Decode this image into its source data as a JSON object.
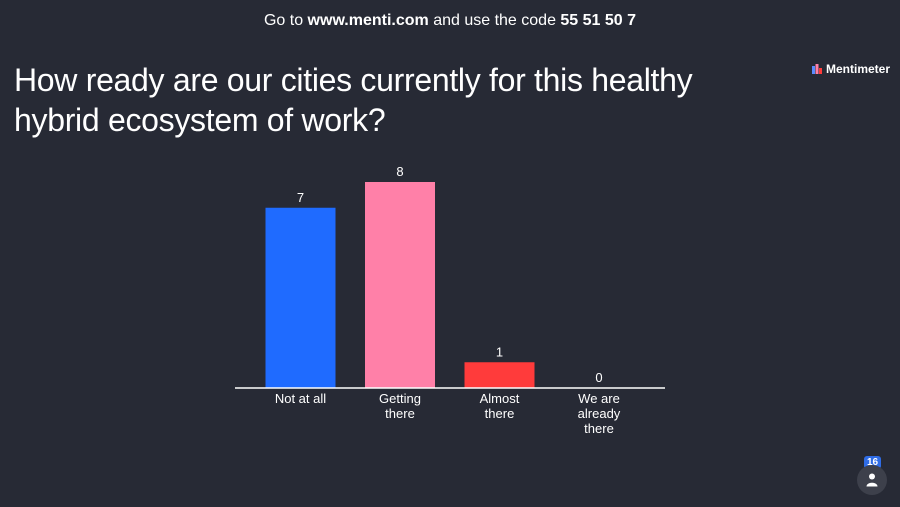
{
  "topbar": {
    "pre": "Go to ",
    "url": "www.menti.com",
    "mid": " and use the code ",
    "code": "55 51 50 7"
  },
  "brand": {
    "name": "Mentimeter"
  },
  "question": "How ready are our cities currently for this healthy hybrid ecosystem of work?",
  "participants": {
    "count": "16",
    "icon": "person-icon"
  },
  "chart_data": {
    "type": "bar",
    "categories": [
      [
        "Not at all"
      ],
      [
        "Getting",
        "there"
      ],
      [
        "Almost",
        "there"
      ],
      [
        "We are",
        "already",
        "there"
      ]
    ],
    "values": [
      7,
      8,
      1,
      0
    ],
    "colors": [
      "#1f6bff",
      "#ff80a8",
      "#ff3b3b",
      "#cccccc"
    ],
    "ylim": [
      0,
      8
    ]
  }
}
